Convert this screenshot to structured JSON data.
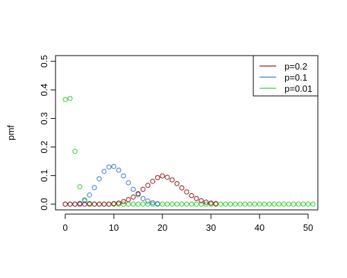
{
  "chart_data": {
    "type": "scatter",
    "title": "",
    "xlabel": "",
    "ylabel": "pmf",
    "xlim": [
      -2,
      52
    ],
    "ylim": [
      -0.02,
      0.52
    ],
    "x_ticks": [
      0,
      10,
      20,
      30,
      40,
      50
    ],
    "y_ticks": [
      0.0,
      0.1,
      0.2,
      0.3,
      0.4,
      0.5
    ],
    "x_tick_labels": [
      "0",
      "10",
      "20",
      "30",
      "40",
      "50"
    ],
    "y_tick_labels": [
      "0.0",
      "0.1",
      "0.2",
      "0.3",
      "0.4",
      "0.5"
    ],
    "grid": false,
    "legend_position": "top-right",
    "series": [
      {
        "name": "p=0.2",
        "color": "#8b1a1a",
        "x": [
          0,
          1,
          2,
          3,
          4,
          5,
          6,
          7,
          8,
          9,
          10,
          11,
          12,
          13,
          14,
          15,
          16,
          17,
          18,
          19,
          20,
          21,
          22,
          23,
          24,
          25,
          26,
          27,
          28,
          29,
          30,
          31
        ],
        "y": [
          0.0,
          0.0,
          0.0,
          0.0,
          0.0,
          0.0,
          0.0,
          0.0,
          0.0,
          0.0,
          0.002,
          0.004,
          0.009,
          0.016,
          0.025,
          0.037,
          0.052,
          0.066,
          0.08,
          0.093,
          0.099,
          0.094,
          0.085,
          0.072,
          0.057,
          0.043,
          0.03,
          0.02,
          0.012,
          0.007,
          0.004,
          0.002
        ]
      },
      {
        "name": "p=0.1",
        "color": "#3a78c9",
        "x": [
          0,
          1,
          2,
          3,
          4,
          5,
          6,
          7,
          8,
          9,
          10,
          11,
          12,
          13,
          14,
          15,
          16,
          17,
          18,
          19
        ],
        "y": [
          0.0,
          0.0,
          0.0,
          0.003,
          0.012,
          0.032,
          0.058,
          0.089,
          0.115,
          0.13,
          0.132,
          0.119,
          0.099,
          0.075,
          0.052,
          0.033,
          0.02,
          0.011,
          0.005,
          0.002
        ]
      },
      {
        "name": "p=0.01",
        "color": "#2ecc2e",
        "x": [
          0,
          1,
          2,
          3,
          4,
          5,
          6,
          7,
          8,
          9,
          10,
          11,
          12,
          13,
          14,
          15,
          16,
          17,
          18,
          19,
          20,
          21,
          22,
          23,
          24,
          25,
          26,
          27,
          28,
          29,
          30,
          31,
          32,
          33,
          34,
          35,
          36,
          37,
          38,
          39,
          40,
          41,
          42,
          43,
          44,
          45,
          46,
          47,
          48,
          49,
          50,
          51
        ],
        "y": [
          0.366,
          0.37,
          0.185,
          0.061,
          0.015,
          0.003,
          0.0,
          0.0,
          0.0,
          0.0,
          0.0,
          0.0,
          0.0,
          0.0,
          0.0,
          0.0,
          0.0,
          0.0,
          0.0,
          0.0,
          0.0,
          0.0,
          0.0,
          0.0,
          0.0,
          0.0,
          0.0,
          0.0,
          0.0,
          0.0,
          0.0,
          0.0,
          0.0,
          0.0,
          0.0,
          0.0,
          0.0,
          0.0,
          0.0,
          0.0,
          0.0,
          0.0,
          0.0,
          0.0,
          0.0,
          0.0,
          0.0,
          0.0,
          0.0,
          0.0,
          0.0,
          0.0
        ]
      }
    ]
  }
}
